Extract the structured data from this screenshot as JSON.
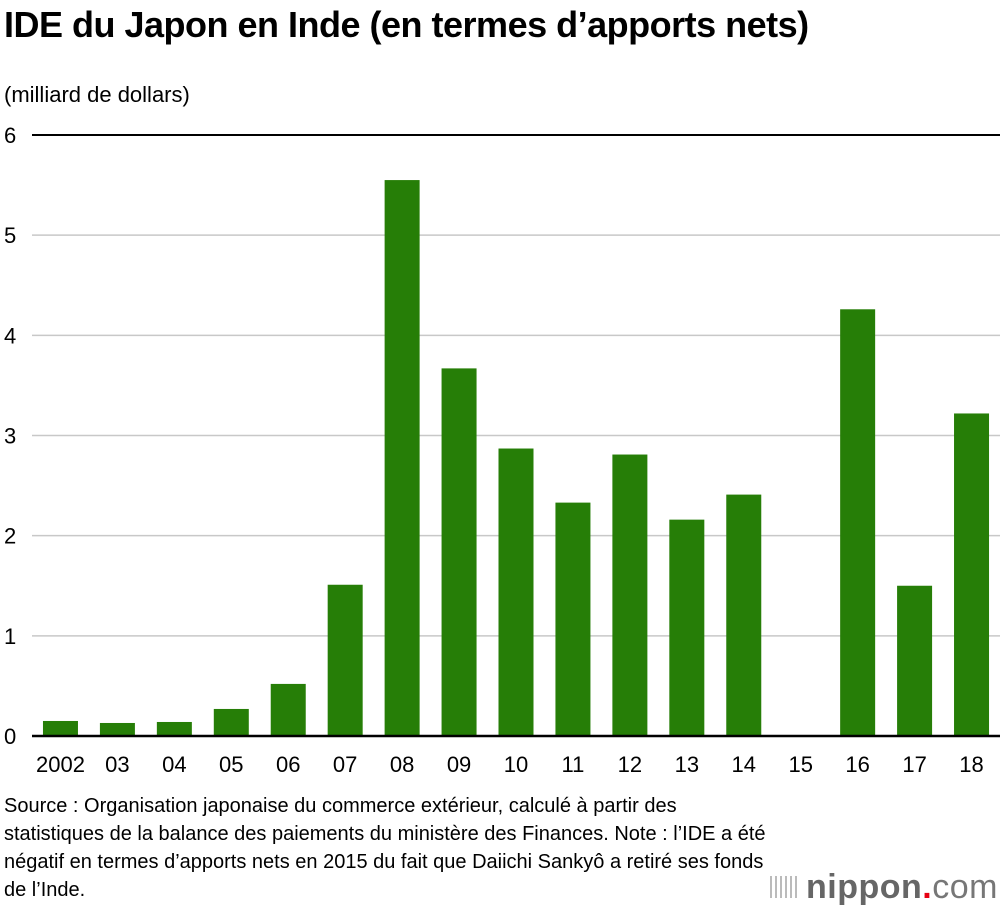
{
  "title": "IDE du Japon en Inde (en termes d’apports nets)",
  "source": "Source : Organisation japonaise du commerce extérieur, calculé à partir des statistiques de la balance des paiements du ministère des Finances. Note : l’IDE a été négatif en termes d’apports nets en 2015 du fait que Daiichi Sankyô a retiré ses fonds de l’Inde.",
  "logo": {
    "name": "nippon",
    "dot": ".",
    "suffix": "com"
  },
  "chart_data": {
    "type": "bar",
    "title": "IDE du Japon en Inde (en termes d’apports nets)",
    "ylabel": "(milliard de dollars)",
    "xlabel": "",
    "categories": [
      "2002",
      "03",
      "04",
      "05",
      "06",
      "07",
      "08",
      "09",
      "10",
      "11",
      "12",
      "13",
      "14",
      "15",
      "16",
      "17",
      "18"
    ],
    "values": [
      0.15,
      0.13,
      0.14,
      0.27,
      0.52,
      1.51,
      5.55,
      3.67,
      2.87,
      2.33,
      2.81,
      2.16,
      2.41,
      null,
      4.26,
      1.5,
      3.22
    ],
    "ylim": [
      0,
      6
    ],
    "yticks": [
      "0",
      "1",
      "2",
      "3",
      "4",
      "5",
      "6"
    ],
    "grid": true,
    "colors": {
      "bar": "#267e07",
      "grid": "#c8c8c8",
      "axis": "#000000"
    }
  }
}
